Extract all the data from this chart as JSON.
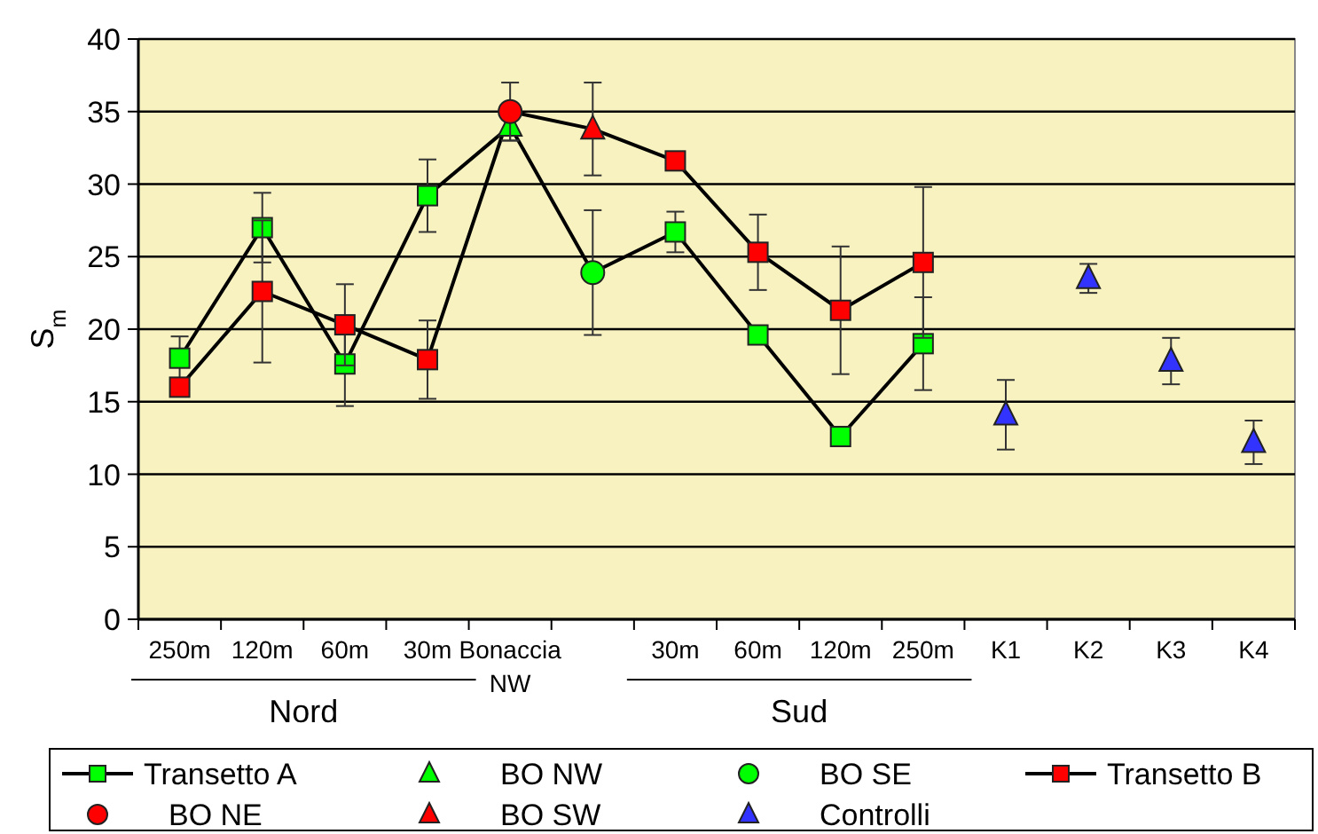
{
  "chart_data": {
    "type": "line",
    "ylabel": "S$_{m}$",
    "categories": [
      "250m",
      "120m",
      "60m",
      "30m",
      "Bonaccia NW",
      null,
      "30m",
      "60m",
      "120m",
      "250m",
      "K1",
      "K2",
      "K3",
      "K4"
    ],
    "ylim": [
      0,
      40
    ],
    "yticks": [
      0,
      5,
      10,
      15,
      20,
      25,
      30,
      35,
      40
    ],
    "grid": "y",
    "legend": "bottom",
    "annotations": [
      "Nord",
      "Sud"
    ],
    "series": [
      {
        "name": "Transetto A",
        "color": "#00ff00",
        "marker": "square",
        "values": [
          18,
          27,
          17.6,
          29.2,
          34,
          23.9,
          26.7,
          19.6,
          12.6,
          19,
          null,
          null,
          null,
          null
        ],
        "errors": [
          1.5,
          2.4,
          2.9,
          2.5,
          null,
          null,
          1.4,
          null,
          0.5,
          3.2,
          null,
          null,
          null,
          null
        ]
      },
      {
        "name": "BO NW",
        "type": "scatter",
        "color": "#00ff00",
        "marker": "triangle",
        "values": [
          null,
          null,
          null,
          null,
          34,
          null,
          null,
          null,
          null,
          null,
          null,
          null,
          null,
          null
        ],
        "errors": [
          null,
          null,
          null,
          null,
          1,
          null,
          null,
          null,
          null,
          null,
          null,
          null,
          null,
          null
        ]
      },
      {
        "name": "BO SE",
        "type": "scatter",
        "color": "#00ff00",
        "marker": "circle",
        "values": [
          null,
          null,
          null,
          null,
          null,
          23.9,
          null,
          null,
          null,
          null,
          null,
          null,
          null,
          null
        ],
        "errors": [
          null,
          null,
          null,
          null,
          null,
          4.3,
          null,
          null,
          null,
          null,
          null,
          null,
          null,
          null
        ]
      },
      {
        "name": "Transetto B",
        "color": "#ff0000",
        "marker": "square",
        "values": [
          16,
          22.6,
          20.3,
          17.9,
          35,
          33.8,
          31.6,
          25.3,
          21.3,
          24.6,
          null,
          null,
          null,
          null
        ],
        "errors": [
          null,
          4.9,
          2.8,
          2.7,
          null,
          null,
          null,
          2.6,
          4.4,
          5.2,
          null,
          null,
          null,
          null
        ]
      },
      {
        "name": "BO NE",
        "type": "scatter",
        "color": "#ff0000",
        "marker": "circle",
        "values": [
          null,
          null,
          null,
          null,
          35,
          null,
          null,
          null,
          null,
          null,
          null,
          null,
          null,
          null
        ],
        "errors": [
          null,
          null,
          null,
          null,
          2,
          null,
          null,
          null,
          null,
          null,
          null,
          null,
          null,
          null
        ]
      },
      {
        "name": "BO SW",
        "type": "scatter",
        "color": "#ff0000",
        "marker": "triangle",
        "values": [
          null,
          null,
          null,
          null,
          null,
          33.8,
          null,
          null,
          null,
          null,
          null,
          null,
          null,
          null
        ],
        "errors": [
          null,
          null,
          null,
          null,
          null,
          3.2,
          null,
          null,
          null,
          null,
          null,
          null,
          null,
          null
        ]
      },
      {
        "name": "Controlli",
        "type": "scatter",
        "color": "#3333ff",
        "marker": "triangle",
        "values": [
          null,
          null,
          null,
          null,
          null,
          null,
          null,
          null,
          null,
          null,
          14.1,
          23.5,
          17.8,
          12.2
        ],
        "errors": [
          null,
          null,
          null,
          null,
          null,
          null,
          null,
          null,
          null,
          null,
          2.4,
          1,
          1.6,
          1.5
        ]
      }
    ]
  }
}
